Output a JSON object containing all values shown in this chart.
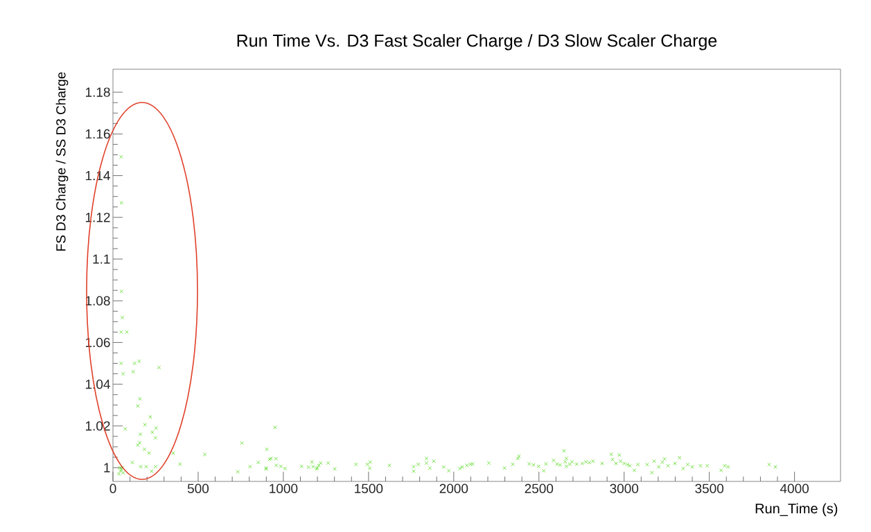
{
  "chart_data": {
    "type": "scatter",
    "title": "Run Time Vs. D3 Fast Scaler Charge / D3 Slow Scaler Charge",
    "xlabel": "Run_Time (s)",
    "ylabel": "FS D3 Charge / SS D3 Charge",
    "xlim": [
      0,
      4270
    ],
    "ylim": [
      0.9934,
      1.191
    ],
    "xticks": [
      0,
      500,
      1000,
      1500,
      2000,
      2500,
      3000,
      3500,
      4000
    ],
    "yticks": [
      1,
      1.02,
      1.04,
      1.06,
      1.08,
      1.1,
      1.12,
      1.14,
      1.16,
      1.18
    ],
    "marker": "cross",
    "series": [
      {
        "color": "#66dd33",
        "x": [
          48,
          50,
          50,
          55,
          48,
          81,
          48,
          60,
          119,
          127,
          154,
          270,
          146,
          158,
          72,
          188,
          219,
          253,
          231,
          161,
          250,
          146,
          157,
          185,
          212,
          354,
          393,
          114,
          163,
          195,
          227,
          250,
          35,
          45,
          50,
          55,
          60,
          40,
          539,
          757,
          733,
          805,
          853,
          903,
          919,
          951,
          898,
          928,
          957,
          900,
          958,
          985,
          1010,
          1107,
          1148,
          1168,
          1175,
          1195,
          1208,
          1219,
          1199,
          1263,
          1302,
          1426,
          1494,
          1510,
          1507,
          1623,
          1765,
          1765,
          1792,
          1840,
          1840,
          1860,
          1883,
          1941,
          1971,
          2036,
          2050,
          2077,
          2098,
          2111,
          2206,
          2298,
          2346,
          2376,
          2383,
          2443,
          2468,
          2498,
          2528,
          2541,
          2586,
          2624,
          2647,
          2661,
          2661,
          2606,
          2654,
          2681,
          2694,
          2721,
          2755,
          2776,
          2796,
          2817,
          2871,
          2925,
          2972,
          2932,
          2952,
          2979,
          3000,
          3020,
          3033,
          3060,
          3081,
          3135,
          3163,
          3176,
          3203,
          3224,
          3237,
          3258,
          3298,
          3325,
          3346,
          3373,
          3400,
          3448,
          3488,
          3569,
          3590,
          3610,
          3851,
          3888
        ],
        "values": [
          1.149,
          1.127,
          1.0845,
          1.072,
          1.065,
          1.065,
          1.05,
          1.045,
          1.046,
          1.05,
          1.051,
          1.048,
          1.0296,
          1.033,
          1.0186,
          1.0206,
          1.0243,
          1.019,
          1.017,
          1.016,
          1.0143,
          1.0108,
          1.012,
          1.0088,
          1.007,
          1.007,
          1.0017,
          1.0025,
          1.0005,
          1.0005,
          0.9983,
          1.0005,
          0.997,
          0.9985,
          0.999,
          1.0,
          0.9975,
          1.0,
          1.0063,
          1.0118,
          0.998,
          1.0005,
          1.0025,
          1.0088,
          1.004,
          1.0193,
          0.9998,
          1.0044,
          1.0043,
          0.9994,
          1.0011,
          1.0006,
          0.9996,
          1.0006,
          1.0002,
          1.0027,
          1.0005,
          0.9994,
          1.0011,
          1.0022,
          0.9999,
          1.0022,
          0.9994,
          1.0016,
          1.0016,
          1.0027,
          0.9997,
          1.0011,
          1.0005,
          0.9983,
          1.0016,
          1.0044,
          1.0022,
          0.9998,
          1.0031,
          1.0003,
          0.9985,
          0.9996,
          1.0003,
          1.0011,
          1.0016,
          1.0018,
          1.0022,
          0.9998,
          1.0016,
          1.0044,
          1.0055,
          1.0018,
          1.0013,
          1.0006,
          0.9985,
          1.0018,
          1.0035,
          1.0013,
          1.0081,
          1.0044,
          1.0006,
          1.0017,
          1.0028,
          1.0017,
          1.0028,
          1.0017,
          1.002,
          1.0028,
          1.0024,
          1.0031,
          1.002,
          1.0064,
          1.0061,
          1.0039,
          1.002,
          1.0031,
          1.002,
          1.0015,
          1.0009,
          0.9987,
          1.0015,
          1.0015,
          0.9976,
          1.0031,
          1.0004,
          1.0026,
          1.0042,
          1.0009,
          1.002,
          1.0048,
          0.9996,
          1.0015,
          1.0004,
          1.0009,
          1.0009,
          0.9987,
          1.0009,
          1.0004,
          1.0015,
          1.0004
        ]
      }
    ]
  }
}
